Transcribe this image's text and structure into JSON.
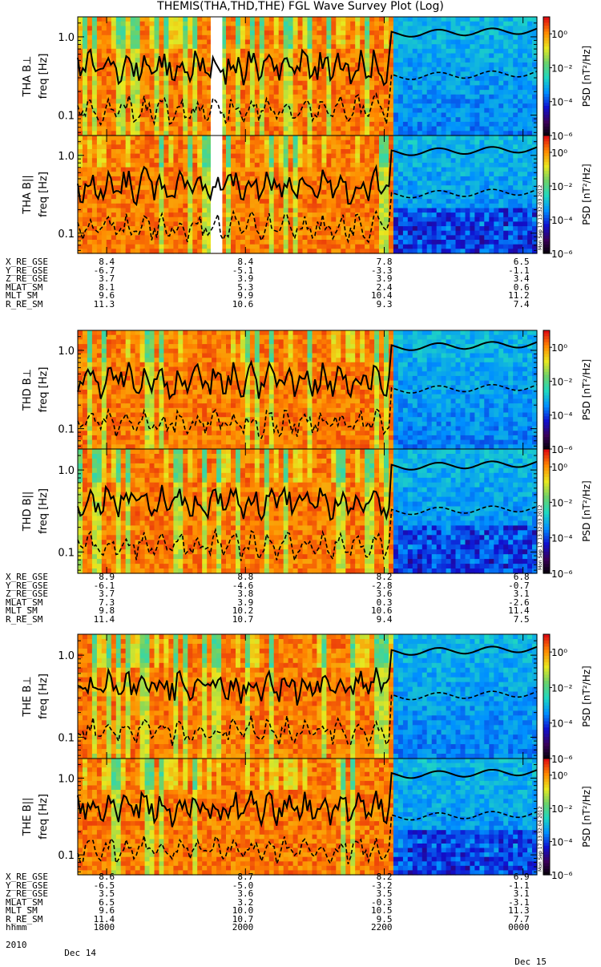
{
  "title": "THEMIS(THA,THD,THE) FGL Wave Survey Plot (Log)",
  "chart_data": {
    "type": "heatmap",
    "probes": [
      {
        "id": "THA",
        "panels": [
          {
            "ylabel": "THA B⊥",
            "gap_start": "1930",
            "gap_end": "1940"
          },
          {
            "ylabel": "THA B||",
            "gap_start": "1930",
            "gap_end": "1940"
          }
        ],
        "ephemeris": [
          {
            "name": "X_RE_GSE",
            "values": [
              "8.4",
              "8.4",
              "7.8",
              "6.5"
            ]
          },
          {
            "name": "Y_RE_GSE",
            "values": [
              "-6.7",
              "-5.1",
              "-3.3",
              "-1.1"
            ]
          },
          {
            "name": "Z_RE_GSE",
            "values": [
              "3.7",
              "3.9",
              "3.9",
              "3.4"
            ]
          },
          {
            "name": "MLAT_SM",
            "values": [
              "8.1",
              "5.3",
              "2.4",
              "0.6"
            ]
          },
          {
            "name": "MLT_SM",
            "values": [
              "9.6",
              "9.9",
              "10.4",
              "11.2"
            ]
          },
          {
            "name": "R_RE_SM",
            "values": [
              "11.3",
              "10.6",
              "9.3",
              "7.4"
            ]
          }
        ]
      },
      {
        "id": "THD",
        "panels": [
          {
            "ylabel": "THD B⊥"
          },
          {
            "ylabel": "THD B||"
          }
        ],
        "ephemeris": [
          {
            "name": "X_RE_GSE",
            "values": [
              "8.9",
              "8.8",
              "8.2",
              "6.8"
            ]
          },
          {
            "name": "Y_RE_GSE",
            "values": [
              "-6.1",
              "-4.6",
              "-2.8",
              "-0.7"
            ]
          },
          {
            "name": "Z_RE_GSE",
            "values": [
              "3.7",
              "3.8",
              "3.6",
              "3.1"
            ]
          },
          {
            "name": "MLAT_SM",
            "values": [
              "7.3",
              "3.9",
              "0.3",
              "-2.6"
            ]
          },
          {
            "name": "MLT_SM",
            "values": [
              "9.8",
              "10.2",
              "10.6",
              "11.4"
            ]
          },
          {
            "name": "R_RE_SM",
            "values": [
              "11.4",
              "10.7",
              "9.4",
              "7.5"
            ]
          }
        ]
      },
      {
        "id": "THE",
        "panels": [
          {
            "ylabel": "THE B⊥"
          },
          {
            "ylabel": "THE B||"
          }
        ],
        "ephemeris": [
          {
            "name": "X_RE_GSE",
            "values": [
              "8.6",
              "8.7",
              "8.2",
              "6.9"
            ]
          },
          {
            "name": "Y_RE_GSE",
            "values": [
              "-6.5",
              "-5.0",
              "-3.2",
              "-1.1"
            ]
          },
          {
            "name": "Z_RE_GSE",
            "values": [
              "3.5",
              "3.6",
              "3.5",
              "3.1"
            ]
          },
          {
            "name": "MLAT_SM",
            "values": [
              "6.5",
              "3.2",
              "-0.3",
              "-3.1"
            ]
          },
          {
            "name": "MLT_SM",
            "values": [
              "9.6",
              "10.0",
              "10.5",
              "11.3"
            ]
          },
          {
            "name": "R_RE_SM",
            "values": [
              "11.4",
              "10.7",
              "9.5",
              "7.7"
            ]
          },
          {
            "name": "hhmm",
            "values": [
              "1800",
              "2000",
              "2200",
              "0000"
            ]
          }
        ]
      }
    ],
    "freq_axis": {
      "label": "freq [Hz]",
      "scale": "log",
      "ticks": [
        "1.0",
        "0.1"
      ],
      "range_hz": [
        0.055,
        1.8
      ]
    },
    "time_axis": {
      "start": "1735",
      "end": "0012",
      "label_times": [
        "1800",
        "2000",
        "2200",
        "0000"
      ],
      "year": "2010",
      "date_start": "Dec 14",
      "date_end": "Dec 15"
    },
    "colorbar": {
      "label": "PSD [nT²/Hz]",
      "scale": "log",
      "range": [
        1e-06,
        10
      ],
      "tick_labels": [
        "10⁰",
        "10⁻²",
        "10⁻⁴",
        "10⁻⁶"
      ],
      "tick_exponents": [
        0,
        -2,
        -4,
        -6
      ]
    },
    "stamps": [
      "Mon Sep 17 13:32:03 2012",
      "Mon Sep 17 13:32:03 2012",
      "Mon Sep 17 13:32:04 2012"
    ],
    "colors": {
      "black_curve": "#000000",
      "gap": "#ffffff",
      "colormap": [
        "#000000",
        "#3a005a",
        "#1010d0",
        "#0090ff",
        "#20d8c0",
        "#6cd26a",
        "#e8e820",
        "#ff8a00",
        "#e01010"
      ]
    }
  }
}
